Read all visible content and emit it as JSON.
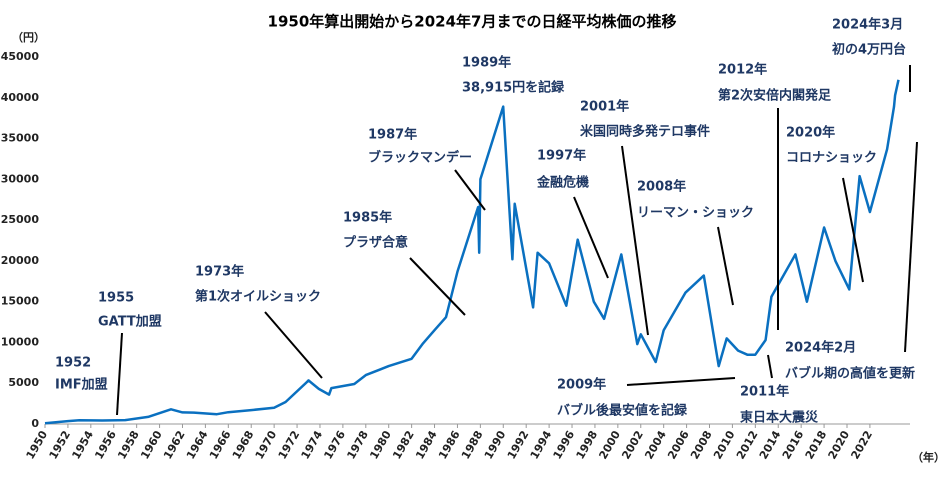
{
  "chart_data": {
    "type": "line",
    "title": "1950年算出開始から2024年7月までの日経平均株価の推移",
    "y_unit": "（円）",
    "x_unit": "（年）",
    "grid": false,
    "xlim": [
      1950,
      2025.5
    ],
    "ylim": [
      0,
      45000
    ],
    "xticks": [
      1950,
      1952,
      1954,
      1956,
      1958,
      1960,
      1962,
      1964,
      1966,
      1968,
      1970,
      1972,
      1974,
      1976,
      1978,
      1980,
      1982,
      1984,
      1986,
      1988,
      1990,
      1992,
      1994,
      1996,
      1998,
      2000,
      2002,
      2004,
      2006,
      2008,
      2010,
      2012,
      2014,
      2016,
      2018,
      2020,
      2022
    ],
    "yticks": [
      0,
      5000,
      10000,
      15000,
      20000,
      25000,
      30000,
      35000,
      40000,
      45000
    ],
    "series": [
      {
        "name": "日経平均株価",
        "color": "#0a70c0",
        "x": [
          1950,
          1952,
          1953,
          1955,
          1957,
          1959,
          1961,
          1962,
          1963,
          1965,
          1966,
          1968,
          1970,
          1971,
          1972.9,
          1973.0,
          1973.9,
          1974.8,
          1975,
          1977,
          1978,
          1980,
          1982,
          1983,
          1984,
          1985,
          1986,
          1987.8,
          1987.9,
          1988,
          1989.99,
          1990.8,
          1991,
          1992.6,
          1993,
          1994,
          1995.5,
          1996.5,
          1997.9,
          1998.8,
          2000.3,
          2001.7,
          2002,
          2003.3,
          2004,
          2005.9,
          2007.5,
          2008.8,
          2009.5,
          2010.5,
          2011.3,
          2012.0,
          2012.9,
          2013.4,
          2015.5,
          2016.5,
          2018,
          2018.99,
          2020.2,
          2021.1,
          2022,
          2023.5,
          2024.1,
          2024.2,
          2024.5
        ],
        "values": [
          100,
          360,
          450,
          425,
          480,
          870,
          1800,
          1420,
          1400,
          1200,
          1450,
          1700,
          2000,
          2700,
          5200,
          5350,
          4300,
          3600,
          4400,
          4900,
          6000,
          7100,
          8000,
          9900,
          11500,
          13100,
          18700,
          26600,
          21000,
          30000,
          38915,
          20200,
          27000,
          14300,
          21000,
          19700,
          14500,
          22600,
          15000,
          12900,
          20800,
          9800,
          11000,
          7600,
          11500,
          16100,
          18200,
          7100,
          10500,
          9000,
          8500,
          8500,
          10300,
          15600,
          20800,
          15000,
          24100,
          20000,
          16500,
          30400,
          26000,
          33700,
          38900,
          40300,
          42200
        ]
      }
    ],
    "annotations": [
      [
        "1952",
        "IMF加盟"
      ],
      [
        "1955",
        "GATT加盟"
      ],
      [
        "1973年",
        "第1次オイルショック"
      ],
      [
        "1985年",
        "プラザ合意"
      ],
      [
        "1987年",
        "ブラックマンデー"
      ],
      [
        "1989年",
        "38,915円を記録"
      ],
      [
        "2001年",
        "米国同時多発テロ事件"
      ],
      [
        "1997年",
        "金融危機"
      ],
      [
        "2008年",
        "リーマン・ショック"
      ],
      [
        "2012年",
        "第2次安倍内閣発足"
      ],
      [
        "2020年",
        "コロナショック"
      ],
      [
        "2024年3月",
        "初の4万円台"
      ],
      [
        "2009年",
        "バブル後最安値を記録"
      ],
      [
        "2011年",
        "東日本大震災"
      ],
      [
        "2024年2月",
        "バブル期の高値を更新"
      ]
    ]
  }
}
